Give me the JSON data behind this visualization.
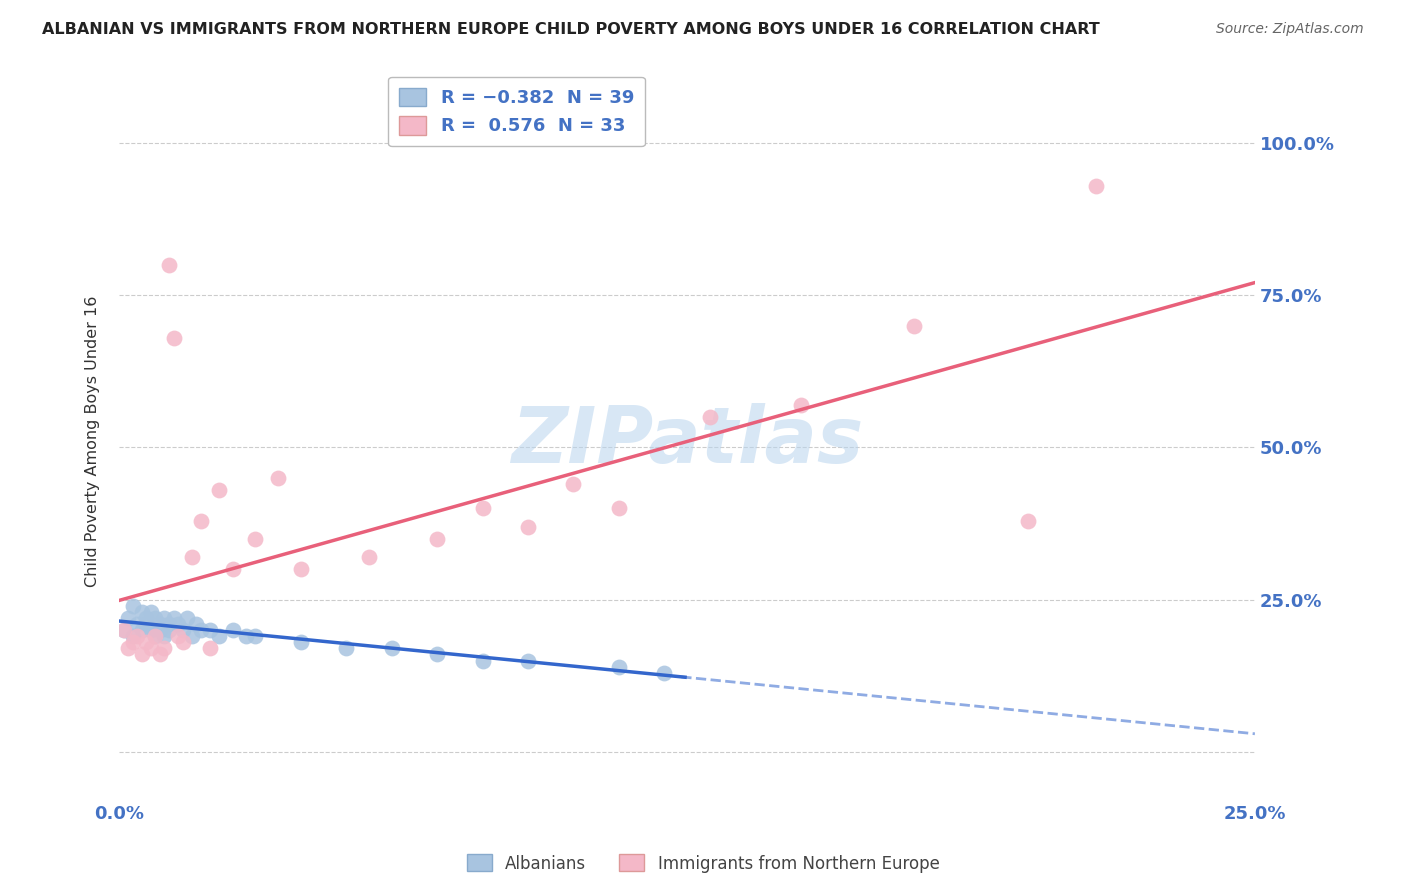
{
  "title": "ALBANIAN VS IMMIGRANTS FROM NORTHERN EUROPE CHILD POVERTY AMONG BOYS UNDER 16 CORRELATION CHART",
  "source": "Source: ZipAtlas.com",
  "ylabel": "Child Poverty Among Boys Under 16",
  "xlim": [
    0.0,
    0.25
  ],
  "ylim": [
    -0.08,
    1.1
  ],
  "yticks": [
    0.0,
    0.25,
    0.5,
    0.75,
    1.0
  ],
  "ytick_labels": [
    "",
    "25.0%",
    "50.0%",
    "75.0%",
    "100.0%"
  ],
  "xticks": [
    0.0,
    0.05,
    0.1,
    0.15,
    0.2,
    0.25
  ],
  "xtick_labels": [
    "0.0%",
    "",
    "",
    "",
    "",
    "25.0%"
  ],
  "blue_color": "#a8c4e0",
  "pink_color": "#f4b8c8",
  "blue_line_color": "#3366CC",
  "pink_line_color": "#E8607A",
  "watermark": "ZIPatlas",
  "alb_x": [
    0.001,
    0.002,
    0.003,
    0.003,
    0.004,
    0.005,
    0.005,
    0.006,
    0.006,
    0.007,
    0.007,
    0.008,
    0.008,
    0.009,
    0.009,
    0.01,
    0.01,
    0.011,
    0.011,
    0.012,
    0.013,
    0.014,
    0.015,
    0.016,
    0.017,
    0.018,
    0.02,
    0.022,
    0.025,
    0.028,
    0.03,
    0.04,
    0.05,
    0.06,
    0.07,
    0.08,
    0.09,
    0.11,
    0.12
  ],
  "alb_y": [
    0.2,
    0.22,
    0.19,
    0.24,
    0.21,
    0.23,
    0.2,
    0.22,
    0.21,
    0.2,
    0.23,
    0.19,
    0.22,
    0.21,
    0.2,
    0.22,
    0.19,
    0.21,
    0.2,
    0.22,
    0.21,
    0.2,
    0.22,
    0.19,
    0.21,
    0.2,
    0.2,
    0.19,
    0.2,
    0.19,
    0.19,
    0.18,
    0.17,
    0.17,
    0.16,
    0.15,
    0.15,
    0.14,
    0.13
  ],
  "ne_x": [
    0.001,
    0.002,
    0.003,
    0.004,
    0.005,
    0.006,
    0.007,
    0.008,
    0.009,
    0.01,
    0.011,
    0.012,
    0.013,
    0.014,
    0.016,
    0.018,
    0.02,
    0.022,
    0.025,
    0.03,
    0.035,
    0.04,
    0.055,
    0.07,
    0.08,
    0.09,
    0.1,
    0.11,
    0.13,
    0.15,
    0.175,
    0.2,
    0.215
  ],
  "ne_y": [
    0.2,
    0.17,
    0.18,
    0.19,
    0.16,
    0.18,
    0.17,
    0.19,
    0.16,
    0.17,
    0.8,
    0.68,
    0.19,
    0.18,
    0.32,
    0.38,
    0.17,
    0.43,
    0.3,
    0.35,
    0.45,
    0.3,
    0.32,
    0.35,
    0.4,
    0.37,
    0.44,
    0.4,
    0.55,
    0.57,
    0.7,
    0.38,
    0.93
  ]
}
